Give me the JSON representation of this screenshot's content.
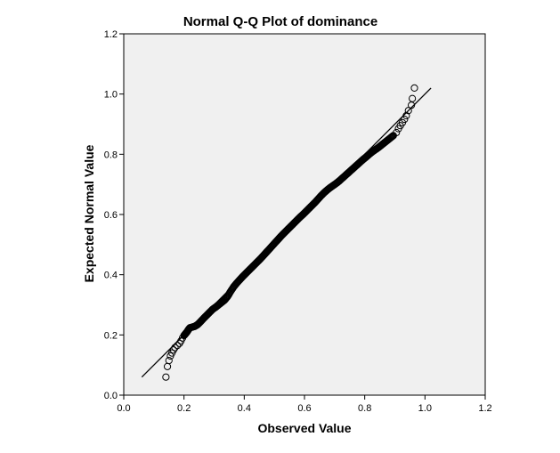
{
  "chart_data": {
    "type": "scatter",
    "title": "Normal Q-Q Plot of dominance",
    "xlabel": "Observed Value",
    "ylabel": "Expected Normal Value",
    "xlim": [
      0.0,
      1.2
    ],
    "ylim": [
      0.0,
      1.2
    ],
    "xticks": [
      "0.0",
      "0.2",
      "0.4",
      "0.6",
      "0.8",
      "1.0",
      "1.2"
    ],
    "yticks": [
      "0.0",
      "0.2",
      "0.4",
      "0.6",
      "0.8",
      "1.0",
      "1.2"
    ],
    "grid": false,
    "plot_background": "#f0f0f0",
    "marker": "open-circle",
    "reference_line": {
      "x": [
        0.06,
        1.02
      ],
      "y": [
        0.06,
        1.02
      ]
    },
    "points": [
      {
        "x": 0.14,
        "y": 0.06
      },
      {
        "x": 0.145,
        "y": 0.095
      },
      {
        "x": 0.15,
        "y": 0.115
      },
      {
        "x": 0.155,
        "y": 0.13
      },
      {
        "x": 0.16,
        "y": 0.14
      },
      {
        "x": 0.165,
        "y": 0.15
      },
      {
        "x": 0.17,
        "y": 0.158
      },
      {
        "x": 0.178,
        "y": 0.165
      },
      {
        "x": 0.185,
        "y": 0.172
      },
      {
        "x": 0.19,
        "y": 0.18
      },
      {
        "x": 0.195,
        "y": 0.19
      },
      {
        "x": 0.2,
        "y": 0.198
      },
      {
        "x": 0.205,
        "y": 0.204
      },
      {
        "x": 0.21,
        "y": 0.21
      },
      {
        "x": 0.215,
        "y": 0.218
      },
      {
        "x": 0.22,
        "y": 0.224
      },
      {
        "x": 0.235,
        "y": 0.228
      },
      {
        "x": 0.245,
        "y": 0.234
      },
      {
        "x": 0.255,
        "y": 0.244
      },
      {
        "x": 0.265,
        "y": 0.255
      },
      {
        "x": 0.275,
        "y": 0.265
      },
      {
        "x": 0.285,
        "y": 0.275
      },
      {
        "x": 0.295,
        "y": 0.285
      },
      {
        "x": 0.305,
        "y": 0.292
      },
      {
        "x": 0.315,
        "y": 0.3
      },
      {
        "x": 0.325,
        "y": 0.308
      },
      {
        "x": 0.335,
        "y": 0.316
      },
      {
        "x": 0.345,
        "y": 0.328
      },
      {
        "x": 0.355,
        "y": 0.345
      },
      {
        "x": 0.365,
        "y": 0.36
      },
      {
        "x": 0.375,
        "y": 0.372
      },
      {
        "x": 0.385,
        "y": 0.383
      },
      {
        "x": 0.395,
        "y": 0.394
      },
      {
        "x": 0.405,
        "y": 0.404
      },
      {
        "x": 0.415,
        "y": 0.414
      },
      {
        "x": 0.425,
        "y": 0.424
      },
      {
        "x": 0.435,
        "y": 0.434
      },
      {
        "x": 0.445,
        "y": 0.444
      },
      {
        "x": 0.455,
        "y": 0.454
      },
      {
        "x": 0.465,
        "y": 0.465
      },
      {
        "x": 0.475,
        "y": 0.476
      },
      {
        "x": 0.485,
        "y": 0.487
      },
      {
        "x": 0.495,
        "y": 0.498
      },
      {
        "x": 0.505,
        "y": 0.509
      },
      {
        "x": 0.515,
        "y": 0.52
      },
      {
        "x": 0.525,
        "y": 0.531
      },
      {
        "x": 0.535,
        "y": 0.541
      },
      {
        "x": 0.545,
        "y": 0.551
      },
      {
        "x": 0.555,
        "y": 0.561
      },
      {
        "x": 0.565,
        "y": 0.571
      },
      {
        "x": 0.575,
        "y": 0.581
      },
      {
        "x": 0.585,
        "y": 0.591
      },
      {
        "x": 0.595,
        "y": 0.6
      },
      {
        "x": 0.605,
        "y": 0.61
      },
      {
        "x": 0.615,
        "y": 0.62
      },
      {
        "x": 0.625,
        "y": 0.63
      },
      {
        "x": 0.635,
        "y": 0.64
      },
      {
        "x": 0.645,
        "y": 0.651
      },
      {
        "x": 0.655,
        "y": 0.662
      },
      {
        "x": 0.665,
        "y": 0.672
      },
      {
        "x": 0.675,
        "y": 0.681
      },
      {
        "x": 0.685,
        "y": 0.689
      },
      {
        "x": 0.695,
        "y": 0.696
      },
      {
        "x": 0.705,
        "y": 0.703
      },
      {
        "x": 0.715,
        "y": 0.711
      },
      {
        "x": 0.725,
        "y": 0.72
      },
      {
        "x": 0.735,
        "y": 0.729
      },
      {
        "x": 0.745,
        "y": 0.738
      },
      {
        "x": 0.755,
        "y": 0.747
      },
      {
        "x": 0.765,
        "y": 0.756
      },
      {
        "x": 0.775,
        "y": 0.765
      },
      {
        "x": 0.785,
        "y": 0.774
      },
      {
        "x": 0.795,
        "y": 0.783
      },
      {
        "x": 0.805,
        "y": 0.791
      },
      {
        "x": 0.815,
        "y": 0.8
      },
      {
        "x": 0.825,
        "y": 0.808
      },
      {
        "x": 0.835,
        "y": 0.815
      },
      {
        "x": 0.845,
        "y": 0.822
      },
      {
        "x": 0.855,
        "y": 0.83
      },
      {
        "x": 0.865,
        "y": 0.838
      },
      {
        "x": 0.875,
        "y": 0.846
      },
      {
        "x": 0.885,
        "y": 0.854
      },
      {
        "x": 0.895,
        "y": 0.862
      },
      {
        "x": 0.905,
        "y": 0.872
      },
      {
        "x": 0.912,
        "y": 0.885
      },
      {
        "x": 0.918,
        "y": 0.895
      },
      {
        "x": 0.925,
        "y": 0.905
      },
      {
        "x": 0.932,
        "y": 0.916
      },
      {
        "x": 0.938,
        "y": 0.928
      },
      {
        "x": 0.945,
        "y": 0.945
      },
      {
        "x": 0.955,
        "y": 0.963
      },
      {
        "x": 0.958,
        "y": 0.985
      },
      {
        "x": 0.965,
        "y": 1.02
      }
    ]
  }
}
